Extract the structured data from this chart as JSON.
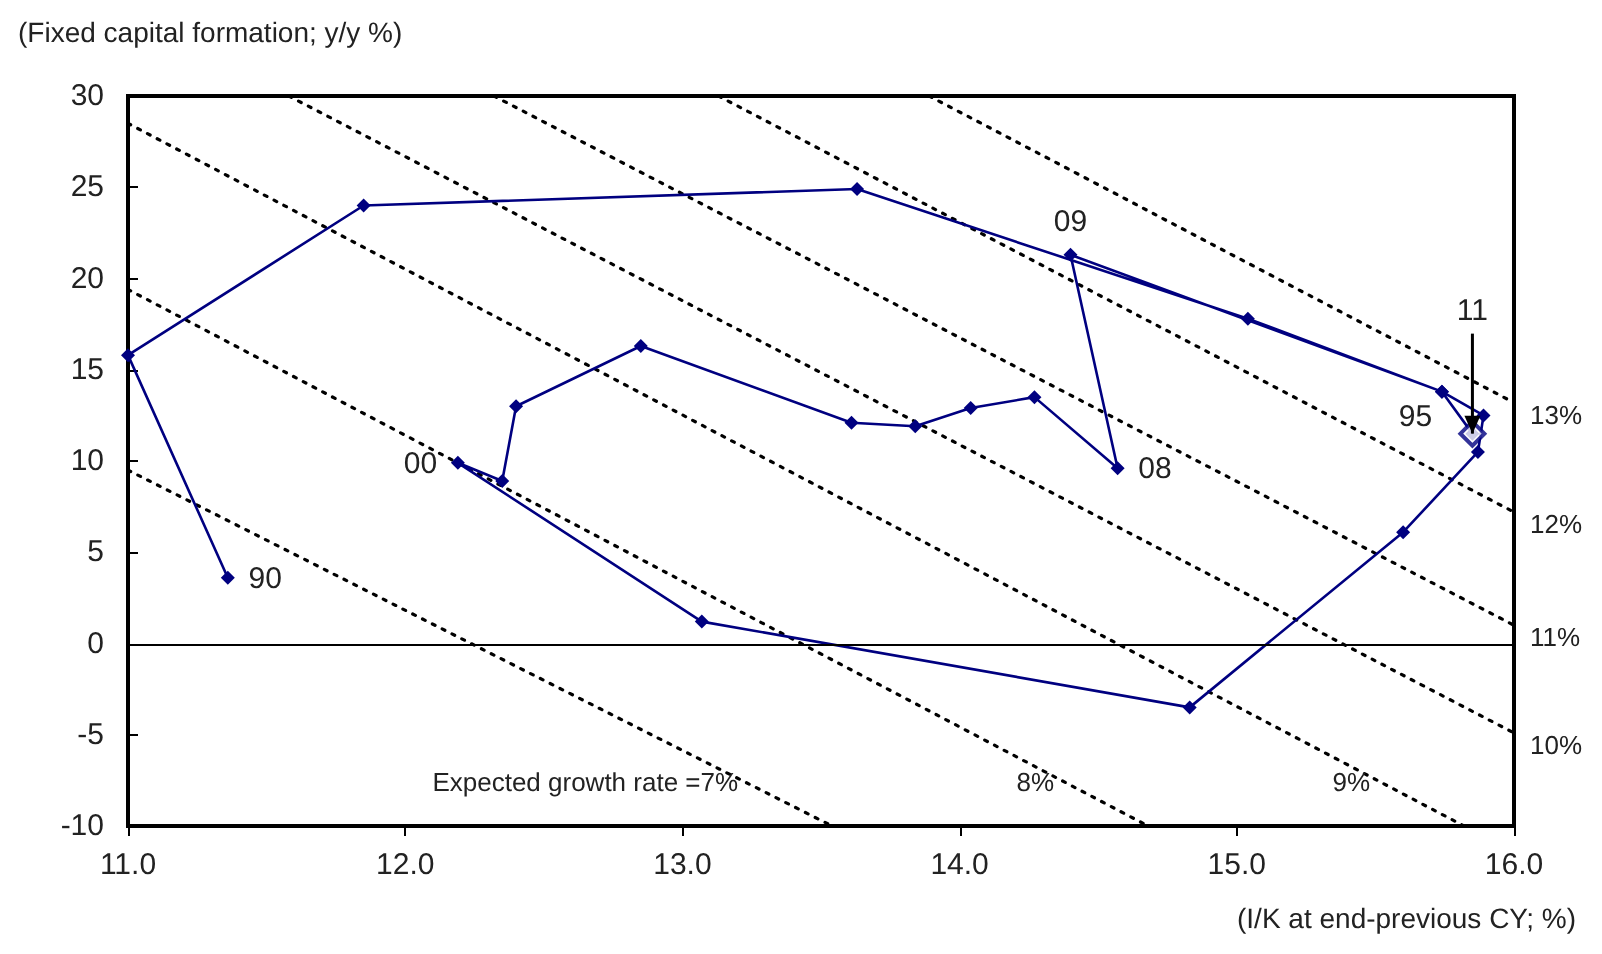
{
  "chart_data": {
    "type": "line",
    "ylabel": "(Fixed capital formation; y/y %)",
    "xlabel": "(I/K at end-previous CY; %)",
    "xlim": [
      11,
      16
    ],
    "xticks": [
      {
        "value": 11,
        "label": "11.0"
      },
      {
        "value": 12,
        "label": "12.0"
      },
      {
        "value": 13,
        "label": "13.0"
      },
      {
        "value": 14,
        "label": "14.0"
      },
      {
        "value": 15,
        "label": "15.0"
      },
      {
        "value": 16,
        "label": "16.0"
      }
    ],
    "ylim": [
      -10,
      30
    ],
    "yticks": [
      -10,
      -5,
      0,
      5,
      10,
      15,
      20,
      25,
      30
    ],
    "grid": false,
    "series": [
      {
        "color": "#000080",
        "marker": "diamond",
        "line_style": "solid",
        "x": [
          11.36,
          11.0,
          11.85,
          13.63,
          15.04,
          15.74,
          15.89,
          15.87,
          15.6,
          14.83,
          13.07,
          12.19,
          12.35,
          12.4,
          12.85,
          13.61,
          13.84,
          14.04,
          14.27,
          14.57,
          14.4,
          15.74,
          15.85
        ],
        "values": [
          3.6,
          15.8,
          24.0,
          24.9,
          17.8,
          13.8,
          12.5,
          10.5,
          6.1,
          -3.5,
          1.2,
          9.9,
          8.9,
          13.0,
          16.3,
          12.1,
          11.9,
          12.9,
          13.5,
          9.6,
          21.3,
          13.8,
          11.5
        ]
      },
      {
        "type": "scatter",
        "color": "#000080",
        "marker": "diamond",
        "x": [
          15.85
        ],
        "values": [
          11.5
        ]
      },
      {
        "type": "line",
        "name": "Expected growth rate =7%",
        "color": "#000000",
        "marker": "none",
        "line_style": "dotted",
        "x": [
          11.0,
          13.54
        ],
        "values": [
          9.5,
          -10
        ]
      },
      {
        "type": "line",
        "name": "8%",
        "color": "#000000",
        "marker": "none",
        "line_style": "dotted",
        "x": [
          11.0,
          14.68
        ],
        "values": [
          19.4,
          -10
        ]
      },
      {
        "type": "line",
        "name": "9%",
        "color": "#000000",
        "marker": "none",
        "line_style": "dotted",
        "x": [
          11.0,
          15.82
        ],
        "values": [
          28.5,
          -10
        ]
      },
      {
        "type": "line",
        "name": "10%",
        "color": "#000000",
        "marker": "none",
        "line_style": "dotted",
        "x": [
          11.58,
          16.0
        ],
        "values": [
          30,
          -4.9
        ]
      },
      {
        "type": "line",
        "name": "11%",
        "color": "#000000",
        "marker": "none",
        "line_style": "dotted",
        "x": [
          12.32,
          16.0
        ],
        "values": [
          30,
          1.0
        ]
      },
      {
        "type": "line",
        "name": "12%",
        "color": "#000000",
        "marker": "none",
        "line_style": "dotted",
        "x": [
          13.13,
          16.0
        ],
        "values": [
          30,
          7.2
        ]
      },
      {
        "type": "line",
        "name": "13%",
        "color": "#000000",
        "marker": "none",
        "line_style": "dotted",
        "x": [
          13.89,
          16.0
        ],
        "values": [
          30,
          13.2
        ]
      }
    ],
    "ref_lines": [
      {
        "axis": "y",
        "value": 0,
        "color": "#000000",
        "line_style": "solid"
      }
    ],
    "annotations": [
      {
        "text": "90",
        "x": 11.36,
        "y": 3.6
      },
      {
        "text": "95",
        "x": 15.74,
        "y": 13.8
      },
      {
        "text": "00",
        "x": 12.19,
        "y": 9.9
      },
      {
        "text": "08",
        "x": 14.57,
        "y": 9.6
      },
      {
        "text": "09",
        "x": 14.4,
        "y": 21.3
      },
      {
        "text": "11",
        "x": 15.85,
        "y": 11.5
      }
    ]
  }
}
